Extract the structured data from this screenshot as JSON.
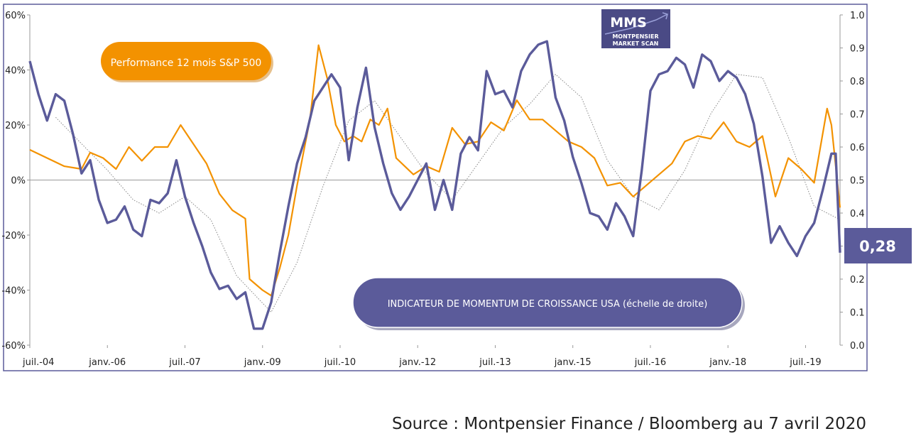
{
  "chart_data": {
    "type": "line",
    "x_tick_labels": [
      "juil.-04",
      "janv.-06",
      "juil.-07",
      "janv.-09",
      "juil.-10",
      "janv.-12",
      "juil.-13",
      "janv.-15",
      "juil.-16",
      "janv.-18",
      "juil.-19"
    ],
    "y_left_ticks": [
      "60%",
      "40%",
      "20%",
      "0%",
      "-20%",
      "-40%",
      "-60%"
    ],
    "y_right_ticks": [
      "1.0",
      "0.9",
      "0.8",
      "0.7",
      "0.6",
      "0.5",
      "0.4",
      "0.3",
      "0.2",
      "0.1",
      "0.0"
    ],
    "ylim_left": [
      -60,
      60
    ],
    "ylim_right": [
      0,
      1
    ],
    "x_range": [
      "2004-07",
      "2020-03"
    ],
    "grid": false,
    "series": [
      {
        "name": "Performance 12 mois S&P 500",
        "axis": "left",
        "color": "#f39200",
        "points": [
          [
            "2004-07",
            11
          ],
          [
            "2004-11",
            8
          ],
          [
            "2005-03",
            5
          ],
          [
            "2005-07",
            4
          ],
          [
            "2005-09",
            10
          ],
          [
            "2005-12",
            8
          ],
          [
            "2006-03",
            4
          ],
          [
            "2006-06",
            12
          ],
          [
            "2006-09",
            7
          ],
          [
            "2006-12",
            12
          ],
          [
            "2007-03",
            12
          ],
          [
            "2007-06",
            20
          ],
          [
            "2007-09",
            13
          ],
          [
            "2007-12",
            6
          ],
          [
            "2008-03",
            -5
          ],
          [
            "2008-06",
            -11
          ],
          [
            "2008-09",
            -14
          ],
          [
            "2008-10",
            -36
          ],
          [
            "2009-01",
            -40
          ],
          [
            "2009-03",
            -42
          ],
          [
            "2009-05",
            -32
          ],
          [
            "2009-07",
            -20
          ],
          [
            "2009-09",
            -2
          ],
          [
            "2009-12",
            22
          ],
          [
            "2010-02",
            49
          ],
          [
            "2010-04",
            37
          ],
          [
            "2010-06",
            20
          ],
          [
            "2010-08",
            14
          ],
          [
            "2010-10",
            16
          ],
          [
            "2010-12",
            14
          ],
          [
            "2011-02",
            22
          ],
          [
            "2011-04",
            20
          ],
          [
            "2011-06",
            26
          ],
          [
            "2011-08",
            8
          ],
          [
            "2011-10",
            5
          ],
          [
            "2011-12",
            2
          ],
          [
            "2012-03",
            5
          ],
          [
            "2012-06",
            3
          ],
          [
            "2012-09",
            19
          ],
          [
            "2012-12",
            13
          ],
          [
            "2013-03",
            14
          ],
          [
            "2013-06",
            21
          ],
          [
            "2013-09",
            18
          ],
          [
            "2013-12",
            29
          ],
          [
            "2014-03",
            22
          ],
          [
            "2014-06",
            22
          ],
          [
            "2014-09",
            18
          ],
          [
            "2014-12",
            14
          ],
          [
            "2015-03",
            12
          ],
          [
            "2015-06",
            8
          ],
          [
            "2015-09",
            -2
          ],
          [
            "2015-12",
            -1
          ],
          [
            "2016-03",
            -6
          ],
          [
            "2016-06",
            -2
          ],
          [
            "2016-09",
            2
          ],
          [
            "2016-12",
            6
          ],
          [
            "2017-03",
            14
          ],
          [
            "2017-06",
            16
          ],
          [
            "2017-09",
            15
          ],
          [
            "2017-12",
            21
          ],
          [
            "2018-03",
            14
          ],
          [
            "2018-06",
            12
          ],
          [
            "2018-09",
            16
          ],
          [
            "2018-12",
            -6
          ],
          [
            "2019-03",
            8
          ],
          [
            "2019-06",
            4
          ],
          [
            "2019-09",
            -1
          ],
          [
            "2019-12",
            26
          ],
          [
            "2020-01",
            20
          ],
          [
            "2020-03",
            -10
          ]
        ]
      },
      {
        "name": "INDICATEUR DE MOMENTUM DE CROISSANCE USA (échelle de droite)",
        "axis": "right",
        "color": "#5b5b9a",
        "points": [
          [
            "2004-07",
            0.86
          ],
          [
            "2004-09",
            0.76
          ],
          [
            "2004-11",
            0.68
          ],
          [
            "2005-01",
            0.76
          ],
          [
            "2005-03",
            0.74
          ],
          [
            "2005-05",
            0.64
          ],
          [
            "2005-07",
            0.52
          ],
          [
            "2005-09",
            0.56
          ],
          [
            "2005-11",
            0.44
          ],
          [
            "2006-01",
            0.37
          ],
          [
            "2006-03",
            0.38
          ],
          [
            "2006-05",
            0.42
          ],
          [
            "2006-07",
            0.35
          ],
          [
            "2006-09",
            0.33
          ],
          [
            "2006-11",
            0.44
          ],
          [
            "2007-01",
            0.43
          ],
          [
            "2007-03",
            0.46
          ],
          [
            "2007-05",
            0.56
          ],
          [
            "2007-07",
            0.45
          ],
          [
            "2007-09",
            0.37
          ],
          [
            "2007-11",
            0.3
          ],
          [
            "2008-01",
            0.22
          ],
          [
            "2008-03",
            0.17
          ],
          [
            "2008-05",
            0.18
          ],
          [
            "2008-07",
            0.14
          ],
          [
            "2008-09",
            0.16
          ],
          [
            "2008-11",
            0.05
          ],
          [
            "2009-01",
            0.05
          ],
          [
            "2009-03",
            0.13
          ],
          [
            "2009-05",
            0.28
          ],
          [
            "2009-07",
            0.42
          ],
          [
            "2009-09",
            0.55
          ],
          [
            "2009-11",
            0.63
          ],
          [
            "2010-01",
            0.74
          ],
          [
            "2010-03",
            0.78
          ],
          [
            "2010-05",
            0.82
          ],
          [
            "2010-07",
            0.78
          ],
          [
            "2010-09",
            0.56
          ],
          [
            "2010-11",
            0.72
          ],
          [
            "2011-01",
            0.84
          ],
          [
            "2011-03",
            0.66
          ],
          [
            "2011-05",
            0.55
          ],
          [
            "2011-07",
            0.46
          ],
          [
            "2011-09",
            0.41
          ],
          [
            "2011-11",
            0.45
          ],
          [
            "2012-01",
            0.5
          ],
          [
            "2012-03",
            0.55
          ],
          [
            "2012-05",
            0.41
          ],
          [
            "2012-07",
            0.5
          ],
          [
            "2012-09",
            0.41
          ],
          [
            "2012-11",
            0.58
          ],
          [
            "2013-01",
            0.63
          ],
          [
            "2013-03",
            0.59
          ],
          [
            "2013-05",
            0.83
          ],
          [
            "2013-07",
            0.76
          ],
          [
            "2013-09",
            0.77
          ],
          [
            "2013-11",
            0.72
          ],
          [
            "2014-01",
            0.83
          ],
          [
            "2014-03",
            0.88
          ],
          [
            "2014-05",
            0.91
          ],
          [
            "2014-07",
            0.92
          ],
          [
            "2014-09",
            0.75
          ],
          [
            "2014-11",
            0.68
          ],
          [
            "2015-01",
            0.57
          ],
          [
            "2015-03",
            0.49
          ],
          [
            "2015-05",
            0.4
          ],
          [
            "2015-07",
            0.39
          ],
          [
            "2015-09",
            0.35
          ],
          [
            "2015-11",
            0.43
          ],
          [
            "2016-01",
            0.39
          ],
          [
            "2016-03",
            0.33
          ],
          [
            "2016-05",
            0.53
          ],
          [
            "2016-07",
            0.77
          ],
          [
            "2016-09",
            0.82
          ],
          [
            "2016-11",
            0.83
          ],
          [
            "2017-01",
            0.87
          ],
          [
            "2017-03",
            0.85
          ],
          [
            "2017-05",
            0.78
          ],
          [
            "2017-07",
            0.88
          ],
          [
            "2017-09",
            0.86
          ],
          [
            "2017-11",
            0.8
          ],
          [
            "2018-01",
            0.83
          ],
          [
            "2018-03",
            0.81
          ],
          [
            "2018-05",
            0.76
          ],
          [
            "2018-07",
            0.67
          ],
          [
            "2018-09",
            0.51
          ],
          [
            "2018-11",
            0.31
          ],
          [
            "2019-01",
            0.36
          ],
          [
            "2019-03",
            0.31
          ],
          [
            "2019-05",
            0.27
          ],
          [
            "2019-07",
            0.33
          ],
          [
            "2019-09",
            0.37
          ],
          [
            "2019-11",
            0.47
          ],
          [
            "2020-01",
            0.58
          ],
          [
            "2020-02",
            0.58
          ],
          [
            "2020-03",
            0.28
          ]
        ]
      },
      {
        "name": "",
        "axis": "right",
        "style": "dotted",
        "color": "#888888",
        "points": [
          [
            "2005-01",
            0.69
          ],
          [
            "2006-01",
            0.53
          ],
          [
            "2006-07",
            0.44
          ],
          [
            "2007-01",
            0.4
          ],
          [
            "2007-07",
            0.45
          ],
          [
            "2008-01",
            0.38
          ],
          [
            "2008-07",
            0.21
          ],
          [
            "2009-03",
            0.1
          ],
          [
            "2009-09",
            0.25
          ],
          [
            "2010-03",
            0.48
          ],
          [
            "2010-09",
            0.68
          ],
          [
            "2011-03",
            0.74
          ],
          [
            "2011-09",
            0.63
          ],
          [
            "2012-03",
            0.52
          ],
          [
            "2012-09",
            0.44
          ],
          [
            "2013-03",
            0.55
          ],
          [
            "2013-09",
            0.66
          ],
          [
            "2014-03",
            0.73
          ],
          [
            "2014-09",
            0.82
          ],
          [
            "2015-03",
            0.75
          ],
          [
            "2015-09",
            0.56
          ],
          [
            "2016-03",
            0.45
          ],
          [
            "2016-09",
            0.41
          ],
          [
            "2017-03",
            0.53
          ],
          [
            "2017-09",
            0.7
          ],
          [
            "2018-03",
            0.82
          ],
          [
            "2018-09",
            0.81
          ],
          [
            "2019-03",
            0.63
          ],
          [
            "2019-09",
            0.42
          ],
          [
            "2020-03",
            0.38
          ]
        ]
      }
    ],
    "annotations": {
      "sp500_label": "Performance 12 mois S&P 500",
      "momentum_label": "INDICATEUR DE MOMENTUM DE CROISSANCE USA (échelle de droite)",
      "current_value": "0,28"
    }
  },
  "logo": {
    "big": "MMS",
    "line1": "MONTPENSIER",
    "line2": "MARKET SCAN"
  },
  "source": "Source : Montpensier Finance / Bloomberg au 7 avril 2020",
  "colors": {
    "orange": "#f39200",
    "navy": "#5b5b9a",
    "frame": "#5b5b9a"
  }
}
